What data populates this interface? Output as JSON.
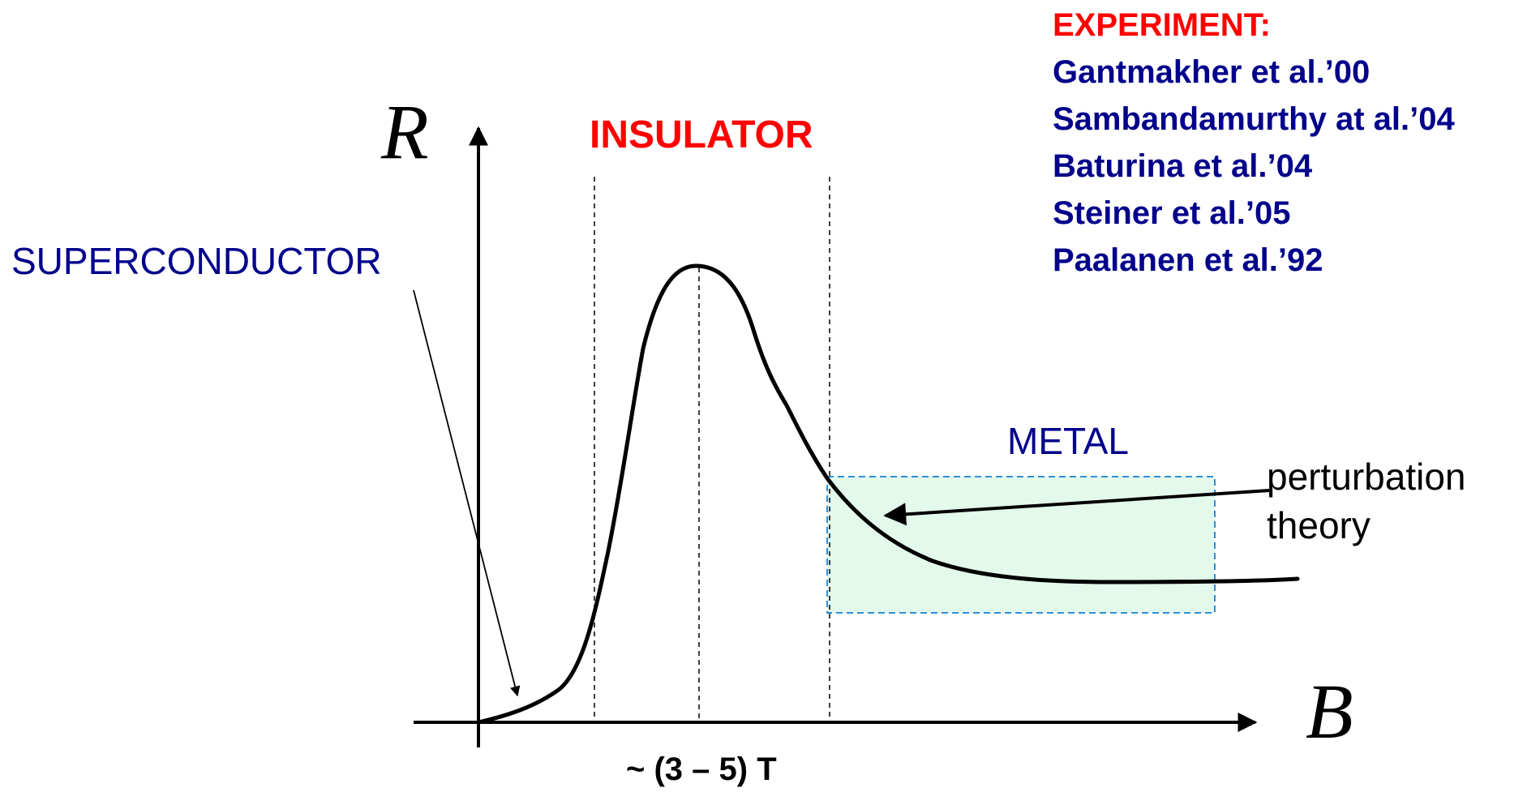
{
  "axes": {
    "y_symbol": "R",
    "x_symbol": "B",
    "x_tick_label": "~ (3 – 5) T"
  },
  "regions": {
    "insulator": "INSULATOR",
    "superconductor": "SUPERCONDUCTOR",
    "metal": "METAL",
    "perturbation_line1": "perturbation",
    "perturbation_line2": "theory"
  },
  "experiment": {
    "heading": "EXPERIMENT:",
    "refs": [
      "Gantmakher et al.’00",
      "Sambandamurthy at al.’04",
      "Baturina et al.’04",
      "Steiner et al.’05",
      "Paalanen et al.’92"
    ]
  },
  "colors": {
    "red_label": "#ff0000",
    "blue_label": "#00008b",
    "curve": "#000000",
    "metal_box_fill": "#e3f9ec",
    "metal_box_border": "#2f8fd8"
  }
}
